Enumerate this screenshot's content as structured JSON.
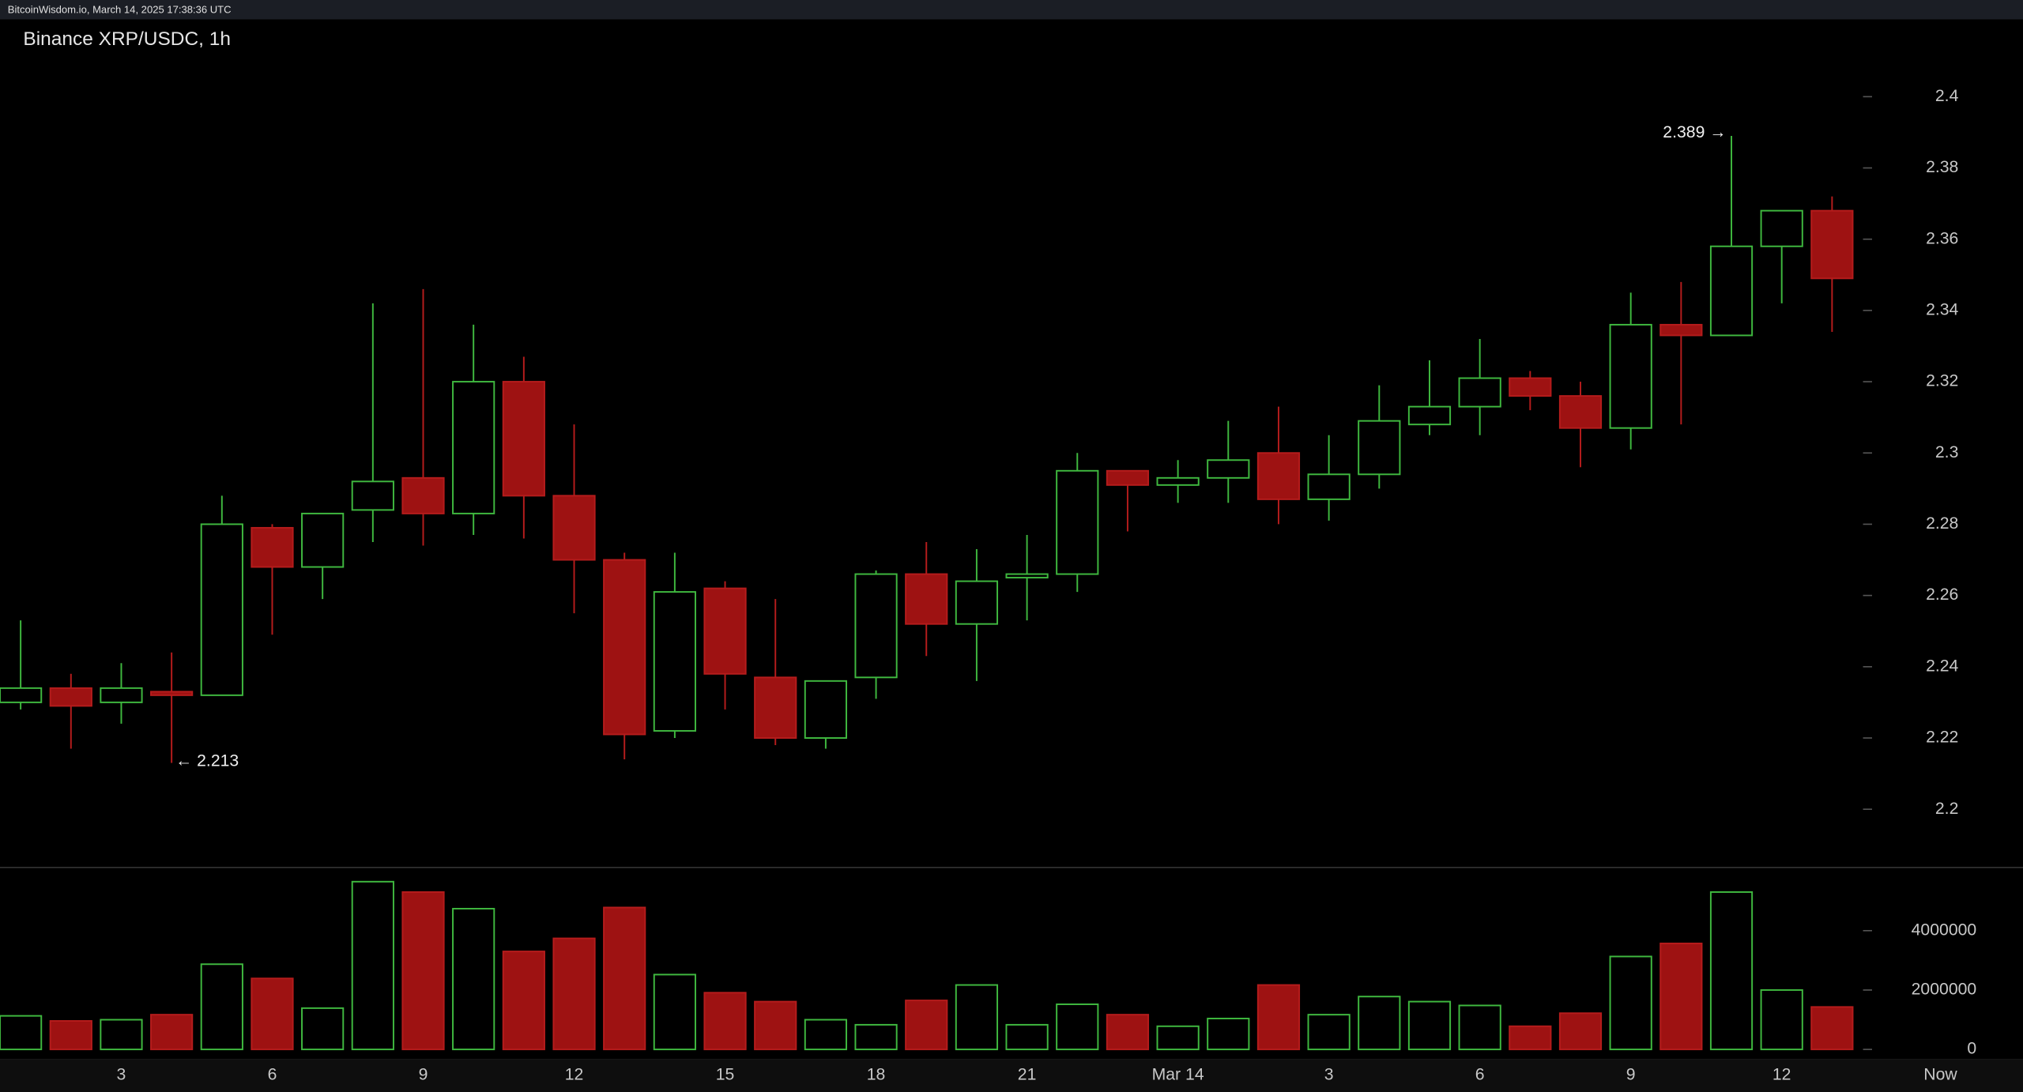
{
  "header": "BitcoinWisdom.io, March 14, 2025 17:38:36 UTC",
  "chart_data": {
    "type": "candlestick",
    "title": "Binance XRP/USDC, 1h",
    "categories": [
      null,
      null,
      "3",
      null,
      null,
      "6",
      null,
      null,
      "9",
      null,
      null,
      "12",
      null,
      null,
      "15",
      null,
      null,
      "18",
      null,
      null,
      "21",
      null,
      null,
      "Mar 14",
      null,
      null,
      "3",
      null,
      null,
      "6",
      null,
      null,
      "9",
      null,
      null,
      "12",
      null
    ],
    "now_label": "Now",
    "open": [
      2.23,
      2.234,
      2.23,
      2.233,
      2.232,
      2.279,
      2.268,
      2.284,
      2.293,
      2.283,
      2.32,
      2.288,
      2.27,
      2.222,
      2.262,
      2.237,
      2.22,
      2.237,
      2.266,
      2.252,
      2.265,
      2.266,
      2.295,
      2.291,
      2.293,
      2.3,
      2.287,
      2.294,
      2.308,
      2.313,
      2.321,
      2.316,
      2.307,
      2.336,
      2.333,
      2.358,
      2.368
    ],
    "high": [
      2.253,
      2.238,
      2.241,
      2.244,
      2.288,
      2.28,
      2.283,
      2.342,
      2.346,
      2.336,
      2.327,
      2.308,
      2.272,
      2.272,
      2.264,
      2.259,
      2.236,
      2.267,
      2.275,
      2.273,
      2.277,
      2.3,
      2.295,
      2.298,
      2.309,
      2.313,
      2.305,
      2.319,
      2.326,
      2.332,
      2.323,
      2.32,
      2.345,
      2.348,
      2.389,
      2.368,
      2.372
    ],
    "low": [
      2.228,
      2.217,
      2.224,
      2.213,
      2.232,
      2.249,
      2.259,
      2.275,
      2.274,
      2.277,
      2.276,
      2.255,
      2.214,
      2.22,
      2.228,
      2.218,
      2.217,
      2.231,
      2.243,
      2.236,
      2.253,
      2.261,
      2.278,
      2.286,
      2.286,
      2.28,
      2.281,
      2.29,
      2.305,
      2.305,
      2.312,
      2.296,
      2.301,
      2.308,
      2.333,
      2.342,
      2.334
    ],
    "close": [
      2.234,
      2.229,
      2.234,
      2.232,
      2.28,
      2.268,
      2.283,
      2.292,
      2.283,
      2.32,
      2.288,
      2.27,
      2.221,
      2.261,
      2.238,
      2.22,
      2.236,
      2.266,
      2.252,
      2.264,
      2.266,
      2.295,
      2.291,
      2.293,
      2.298,
      2.287,
      2.294,
      2.309,
      2.313,
      2.321,
      2.316,
      2.307,
      2.336,
      2.333,
      2.358,
      2.368,
      2.349
    ],
    "volume": [
      1130000,
      960000,
      1000000,
      1170000,
      2870000,
      2390000,
      1390000,
      5650000,
      5300000,
      4740000,
      3300000,
      3740000,
      4780000,
      2520000,
      1910000,
      1610000,
      1000000,
      830000,
      1650000,
      2170000,
      830000,
      1520000,
      1170000,
      780000,
      1040000,
      2170000,
      1170000,
      1780000,
      1610000,
      1480000,
      780000,
      1220000,
      3130000,
      3570000,
      5300000,
      2000000,
      1430000
    ],
    "ylim": [
      2.1844,
      2.4217
    ],
    "yticks": [
      2.2,
      2.22,
      2.24,
      2.26,
      2.28,
      2.3,
      2.32,
      2.34,
      2.36,
      2.38,
      2.4
    ],
    "volume_ylim": [
      0,
      6000000
    ],
    "volume_yticks": [
      0,
      2000000,
      4000000
    ],
    "up_color": "#3fb83f",
    "down_color": "#9e1212",
    "annotations": [
      "2.389 →",
      "← 2.213"
    ]
  }
}
